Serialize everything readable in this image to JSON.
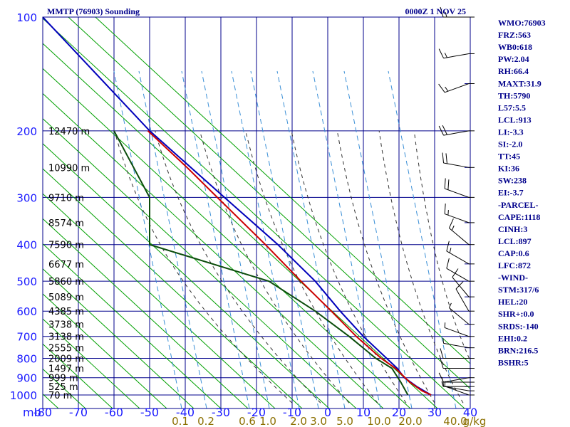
{
  "header": {
    "station": "MMTP (76903) Sounding",
    "time": "0000Z  1 NOV 25"
  },
  "indices": [
    "WMO:76903",
    "FRZ:563",
    "WB0:618",
    "PW:2.04",
    "RH:66.4",
    "MAXT:31.9",
    "TH:5790",
    "L57:5.5",
    "LCL:913",
    "LI:-3.3",
    "SI:-2.0",
    "TT:45",
    "KI:36",
    "SW:238",
    "EI:-3.7",
    "-PARCEL-",
    "CAPE:1118",
    "CINH:3",
    "LCL:897",
    "CAP:0.6",
    "LFC:872",
    "-WIND-",
    "STM:317/6",
    "HEL:20",
    "SHR+:0.0",
    "SRDS:-140",
    "EHI:0.2",
    "BRN:216.5",
    "BSHR:5"
  ],
  "colors": {
    "frame": "#00008b",
    "isobar": "#00008b",
    "isotherm": "#00008b",
    "dry_adiabat": "#00a000",
    "moist_adiabat": "#333333",
    "mixing_ratio": "#3a8fd6",
    "temperature": "#cc0000",
    "dewpoint": "#0b4d0b",
    "parcel": "#0000bb",
    "wind": "#000000",
    "mixing_label": "#8b6f00"
  },
  "chart_data": {
    "type": "skew-t",
    "pressure_unit": "mb",
    "pressure_levels": [
      100,
      200,
      300,
      400,
      500,
      600,
      700,
      800,
      900,
      1000
    ],
    "pressure_labels": [
      "100",
      "200",
      "300",
      "400",
      "500",
      "600",
      "700",
      "800",
      "900",
      "1000"
    ],
    "pressure_unit_label": "mb",
    "temperature_ticks": [
      -80,
      -70,
      -60,
      -50,
      -40,
      -30,
      -20,
      -10,
      0,
      10,
      20,
      30,
      40
    ],
    "temperature_labels": [
      "-80",
      "-70",
      "-60",
      "-50",
      "-40",
      "-30",
      "-20",
      "-10",
      "0",
      "10",
      "20",
      "30",
      "40"
    ],
    "height_labels": [
      {
        "p": 200,
        "text": "12470 m"
      },
      {
        "p": 250,
        "text": "10990 m"
      },
      {
        "p": 300,
        "text": "9710 m"
      },
      {
        "p": 350,
        "text": "8574 m"
      },
      {
        "p": 400,
        "text": "7590 m"
      },
      {
        "p": 450,
        "text": "6677 m"
      },
      {
        "p": 500,
        "text": "5860 m"
      },
      {
        "p": 550,
        "text": "5089 m"
      },
      {
        "p": 600,
        "text": "4385 m"
      },
      {
        "p": 650,
        "text": "3738 m"
      },
      {
        "p": 700,
        "text": "3138 m"
      },
      {
        "p": 750,
        "text": "2555 m"
      },
      {
        "p": 800,
        "text": "2009 m"
      },
      {
        "p": 850,
        "text": "1497 m"
      },
      {
        "p": 900,
        "text": "999 m"
      },
      {
        "p": 950,
        "text": "525 m"
      },
      {
        "p": 1000,
        "text": "70 m"
      }
    ],
    "mixing_ratio_labels": [
      "0.1",
      "0.2",
      "0.6",
      "1.0",
      "2.0",
      "3.0",
      "5.0",
      "10.0",
      "20.0",
      "40.0",
      "g/kg"
    ],
    "mixing_ratio_values": [
      0.1,
      0.2,
      0.6,
      1.0,
      2.0,
      3.0,
      5.0,
      10.0,
      20.0,
      40.0
    ],
    "temperature_profile": [
      {
        "p": 1000,
        "t": 29.0
      },
      {
        "p": 975,
        "t": 26.5
      },
      {
        "p": 925,
        "t": 23.0
      },
      {
        "p": 850,
        "t": 19.0
      },
      {
        "p": 800,
        "t": 15.0
      },
      {
        "p": 700,
        "t": 8.0
      },
      {
        "p": 600,
        "t": 1.0
      },
      {
        "p": 500,
        "t": -7.5
      },
      {
        "p": 400,
        "t": -17.5
      },
      {
        "p": 300,
        "t": -31.0
      },
      {
        "p": 250,
        "t": -39.5
      },
      {
        "p": 200,
        "t": -50.5
      }
    ],
    "dewpoint_profile": [
      {
        "p": 1000,
        "td": 22.5
      },
      {
        "p": 925,
        "td": 20.5
      },
      {
        "p": 850,
        "td": 18.0
      },
      {
        "p": 800,
        "td": 13.5
      },
      {
        "p": 700,
        "td": 6.0
      },
      {
        "p": 600,
        "td": -3.5
      },
      {
        "p": 500,
        "td": -16.5
      },
      {
        "p": 400,
        "td": -50.0
      },
      {
        "p": 300,
        "td": -50.0
      },
      {
        "p": 200,
        "td": -60.0
      }
    ],
    "parcel_profile": [
      {
        "p": 1000,
        "t": 29.0
      },
      {
        "p": 950,
        "t": 25.0
      },
      {
        "p": 900,
        "t": 21.5
      },
      {
        "p": 850,
        "t": 19.5
      },
      {
        "p": 700,
        "t": 10.0
      },
      {
        "p": 600,
        "t": 3.5
      },
      {
        "p": 500,
        "t": -3.5
      },
      {
        "p": 400,
        "t": -14.0
      },
      {
        "p": 300,
        "t": -29.0
      },
      {
        "p": 200,
        "t": -50.0
      },
      {
        "p": 100,
        "t": -80.0
      }
    ],
    "winds": [
      {
        "p": 1000,
        "dir": 110,
        "spd": 5
      },
      {
        "p": 975,
        "dir": 100,
        "spd": 5
      },
      {
        "p": 950,
        "dir": 90,
        "spd": 5
      },
      {
        "p": 925,
        "dir": 90,
        "spd": 5
      },
      {
        "p": 900,
        "dir": 80,
        "spd": 10
      },
      {
        "p": 850,
        "dir": 90,
        "spd": 10
      },
      {
        "p": 800,
        "dir": 90,
        "spd": 10
      },
      {
        "p": 750,
        "dir": 100,
        "spd": 5
      },
      {
        "p": 700,
        "dir": 110,
        "spd": 5
      },
      {
        "p": 650,
        "dir": 130,
        "spd": 5
      },
      {
        "p": 600,
        "dir": 150,
        "spd": 10
      },
      {
        "p": 550,
        "dir": 140,
        "spd": 10
      },
      {
        "p": 500,
        "dir": 120,
        "spd": 10
      },
      {
        "p": 450,
        "dir": 120,
        "spd": 15
      },
      {
        "p": 400,
        "dir": 130,
        "spd": 15
      },
      {
        "p": 350,
        "dir": 110,
        "spd": 15
      },
      {
        "p": 300,
        "dir": 110,
        "spd": 20
      },
      {
        "p": 250,
        "dir": 100,
        "spd": 20
      },
      {
        "p": 200,
        "dir": 80,
        "spd": 20
      },
      {
        "p": 150,
        "dir": 70,
        "spd": 15
      },
      {
        "p": 125,
        "dir": 80,
        "spd": 15
      },
      {
        "p": 100,
        "dir": 90,
        "spd": 15
      }
    ]
  }
}
